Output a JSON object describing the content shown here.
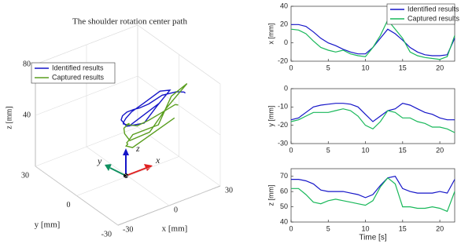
{
  "chart_data": [
    {
      "type": "line3d",
      "title": "The shoulder rotation center path",
      "xlabel": "x [mm]",
      "ylabel": "y [mm]",
      "zlabel": "z [mm]",
      "xlim": [
        -30,
        30
      ],
      "ylim": [
        -30,
        30
      ],
      "zlim": [
        0,
        80
      ],
      "xticks": [
        -30,
        0,
        30
      ],
      "yticks": [
        -30,
        0,
        30
      ],
      "zticks": [
        40,
        80
      ],
      "legend": "upper left",
      "grid": true,
      "annotations": [
        "x",
        "y",
        "z"
      ],
      "series": [
        {
          "name": "Identified results",
          "color": "#1515c8",
          "x": [
            20,
            20,
            18,
            12,
            5,
            0,
            -3,
            -7,
            -10,
            -12,
            -12,
            -5,
            5,
            15,
            10,
            3,
            -5,
            -10,
            -13,
            -14,
            -14,
            -13,
            5
          ],
          "y": [
            -17,
            -16,
            -13,
            -10,
            -9,
            -8.5,
            -8,
            -8,
            -8.5,
            -10,
            -14,
            -18,
            -15,
            -12,
            -11,
            -8,
            -9,
            -11,
            -13,
            -14,
            -16,
            -17,
            -17
          ],
          "z": [
            68,
            68,
            67,
            65,
            61,
            60,
            60,
            60,
            59,
            58,
            56,
            58,
            64,
            69,
            70,
            62,
            60,
            59,
            59,
            59,
            60,
            59,
            68
          ]
        },
        {
          "name": "Captured results",
          "color": "#5a9e1f",
          "x": [
            15,
            14,
            10,
            2,
            -5,
            -8,
            -10,
            -8,
            -12,
            -14,
            -15,
            -5,
            8,
            25,
            15,
            5,
            -10,
            -14,
            -16,
            -17,
            -18,
            -15,
            8
          ],
          "y": [
            -18,
            -17,
            -15,
            -13,
            -13,
            -13,
            -12,
            -11,
            -12,
            -15,
            -20,
            -22,
            -18,
            -12,
            -13,
            -16,
            -16,
            -18,
            -19,
            -21,
            -21,
            -22,
            -24
          ],
          "z": [
            62,
            62,
            58,
            53,
            52,
            54,
            55,
            54,
            53,
            52,
            51,
            54,
            63,
            69,
            65,
            50,
            50,
            49,
            49,
            50,
            49,
            47,
            60
          ]
        }
      ]
    },
    {
      "type": "line",
      "ylabel": "x [mm]",
      "xlim": [
        0,
        22
      ],
      "ylim": [
        -20,
        40
      ],
      "xticks": [
        0,
        5,
        10,
        15,
        20
      ],
      "yticks": [
        -20,
        0,
        20,
        40
      ],
      "legend": "upper right",
      "x": [
        0,
        1,
        2,
        3,
        4,
        5,
        6,
        7,
        8,
        9,
        10,
        11,
        12,
        13,
        14,
        15,
        16,
        17,
        18,
        19,
        20,
        21,
        22
      ],
      "series": [
        {
          "name": "Identified results",
          "color": "#1515c8",
          "values": [
            20,
            20,
            18,
            12,
            5,
            0,
            -3,
            -7,
            -10,
            -12,
            -12,
            -5,
            5,
            15,
            10,
            3,
            -5,
            -10,
            -13,
            -14,
            -14,
            -13,
            5
          ]
        },
        {
          "name": "Captured results",
          "color": "#19b85a",
          "values": [
            15,
            14,
            10,
            2,
            -5,
            -8,
            -10,
            -8,
            -12,
            -14,
            -15,
            -5,
            8,
            25,
            15,
            5,
            -10,
            -14,
            -16,
            -17,
            -18,
            -15,
            8
          ]
        }
      ]
    },
    {
      "type": "line",
      "ylabel": "y [mm]",
      "xlim": [
        0,
        22
      ],
      "ylim": [
        -30,
        0
      ],
      "xticks": [
        0,
        5,
        10,
        15,
        20
      ],
      "yticks": [
        -30,
        -20,
        -10,
        0
      ],
      "x": [
        0,
        1,
        2,
        3,
        4,
        5,
        6,
        7,
        8,
        9,
        10,
        11,
        12,
        13,
        14,
        15,
        16,
        17,
        18,
        19,
        20,
        21,
        22
      ],
      "series": [
        {
          "color": "#1515c8",
          "values": [
            -17,
            -16,
            -13,
            -10,
            -9,
            -8.5,
            -8,
            -8,
            -8.5,
            -10,
            -14,
            -18,
            -15,
            -12,
            -11,
            -8,
            -9,
            -11,
            -13,
            -14,
            -16,
            -17,
            -17
          ]
        },
        {
          "color": "#19b85a",
          "values": [
            -18,
            -17,
            -15,
            -13,
            -13,
            -13,
            -12,
            -11,
            -12,
            -15,
            -20,
            -22,
            -18,
            -12,
            -13,
            -16,
            -16,
            -18,
            -19,
            -21,
            -21,
            -22,
            -24
          ]
        }
      ]
    },
    {
      "type": "line",
      "ylabel": "z [mm]",
      "xlabel": "Time [s]",
      "xlim": [
        0,
        22
      ],
      "ylim": [
        40,
        75
      ],
      "xticks": [
        0,
        5,
        10,
        15,
        20
      ],
      "yticks": [
        40,
        50,
        60,
        70
      ],
      "x": [
        0,
        1,
        2,
        3,
        4,
        5,
        6,
        7,
        8,
        9,
        10,
        11,
        12,
        13,
        14,
        15,
        16,
        17,
        18,
        19,
        20,
        21,
        22
      ],
      "series": [
        {
          "color": "#1515c8",
          "values": [
            68,
            68,
            67,
            65,
            61,
            60,
            60,
            60,
            59,
            58,
            56,
            58,
            64,
            69,
            70,
            62,
            60,
            59,
            59,
            59,
            60,
            59,
            68
          ]
        },
        {
          "color": "#19b85a",
          "values": [
            62,
            62,
            58,
            53,
            52,
            54,
            55,
            54,
            53,
            52,
            51,
            54,
            63,
            69,
            65,
            50,
            50,
            49,
            49,
            50,
            49,
            47,
            60
          ]
        }
      ]
    }
  ]
}
